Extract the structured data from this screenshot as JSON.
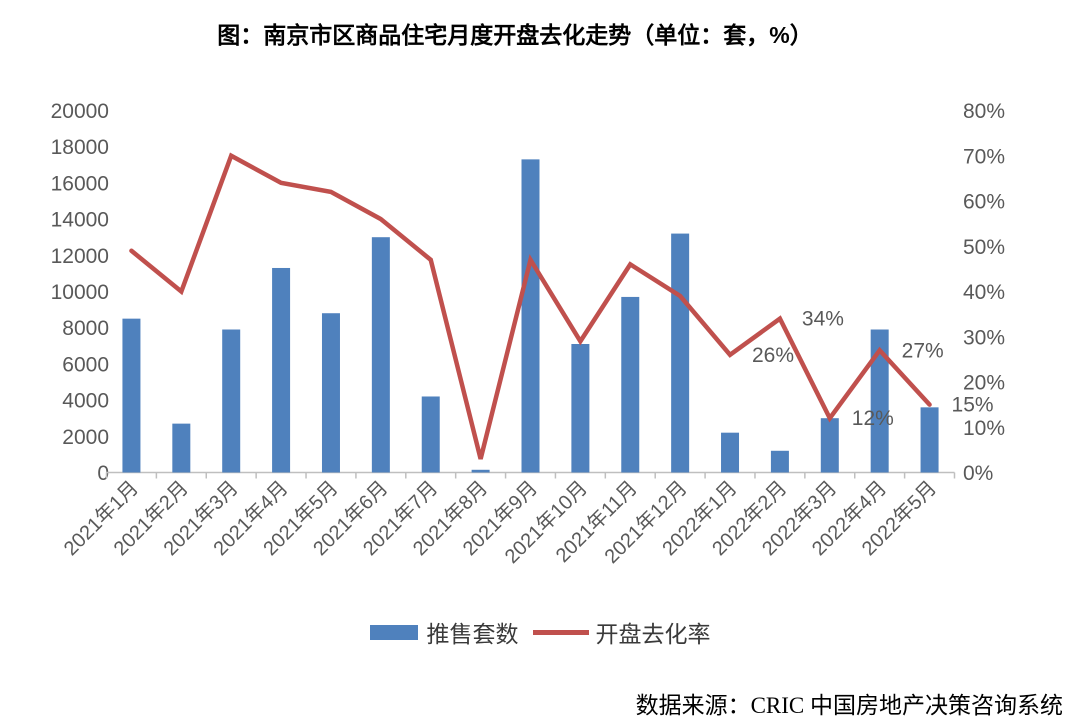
{
  "title": "图：南京市区商品住宅月度开盘去化走势（单位：套，%）",
  "source": "数据来源：CRIC 中国房地产决策咨询系统",
  "legend": {
    "bars_label": "推售套数",
    "line_label": "开盘去化率"
  },
  "colors": {
    "bar": "#4F81BD",
    "line": "#C0504D",
    "axis_text": "#595959",
    "axis_line": "#BFBFBF",
    "title_text": "#000000"
  },
  "chart_data": {
    "type": "bar",
    "subtype": "bar+line combo, dual axis",
    "title": "图：南京市区商品住宅月度开盘去化走势（单位：套，%）",
    "categories": [
      "2021年1月",
      "2021年2月",
      "2021年3月",
      "2021年4月",
      "2021年5月",
      "2021年6月",
      "2021年7月",
      "2021年8月",
      "2021年9月",
      "2021年10月",
      "2021年11月",
      "2021年12月",
      "2022年1月",
      "2022年2月",
      "2022年3月",
      "2022年4月",
      "2022年5月"
    ],
    "series": [
      {
        "name": "推售套数",
        "type": "bar",
        "axis": "left",
        "unit": "套",
        "values": [
          8500,
          2700,
          7900,
          11300,
          8800,
          13000,
          4200,
          150,
          17300,
          7100,
          9700,
          13200,
          2200,
          1200,
          3000,
          7900,
          3600
        ]
      },
      {
        "name": "开盘去化率",
        "type": "line",
        "axis": "right",
        "unit": "%",
        "values": [
          49,
          40,
          70,
          64,
          62,
          56,
          47,
          3,
          47,
          29,
          46,
          39,
          26,
          34,
          12,
          27,
          15
        ],
        "point_labels": [
          null,
          null,
          null,
          null,
          null,
          null,
          null,
          null,
          null,
          null,
          null,
          null,
          "26%",
          "34%",
          "12%",
          "27%",
          "15%"
        ]
      }
    ],
    "left_axis": {
      "min": 0,
      "max": 20000,
      "step": 2000,
      "ticks": [
        "0",
        "2000",
        "4000",
        "6000",
        "8000",
        "10000",
        "12000",
        "14000",
        "16000",
        "18000",
        "20000"
      ]
    },
    "right_axis": {
      "min": 0,
      "max": 80,
      "step": 10,
      "ticks": [
        "0%",
        "10%",
        "20%",
        "30%",
        "40%",
        "50%",
        "60%",
        "70%",
        "80%"
      ]
    },
    "grid": false,
    "legend_position": "bottom"
  }
}
